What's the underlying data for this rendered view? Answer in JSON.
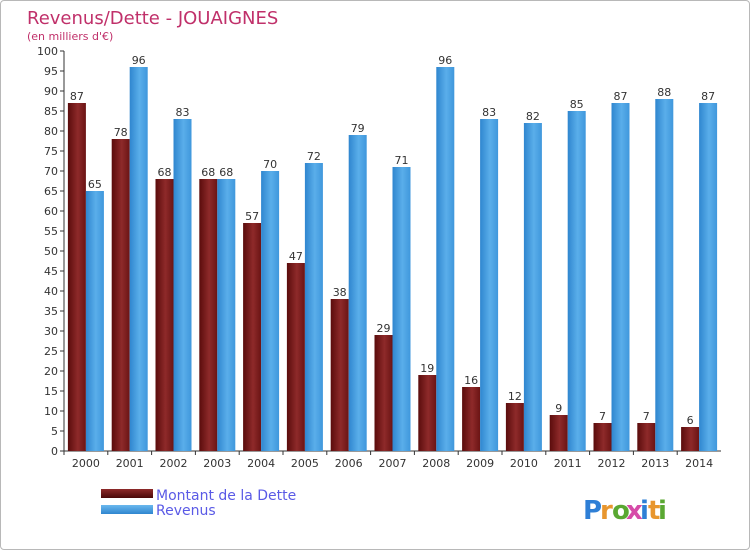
{
  "chart_data": {
    "type": "bar",
    "title": "Revenus/Dette - JOUAIGNES",
    "subtitle": "(en milliers d'€)",
    "categories": [
      "2000",
      "2001",
      "2002",
      "2003",
      "2004",
      "2005",
      "2006",
      "2007",
      "2008",
      "2009",
      "2010",
      "2011",
      "2012",
      "2013",
      "2014"
    ],
    "series": [
      {
        "name": "Montant de la Dette",
        "color": "#7a1a1a",
        "values": [
          87,
          78,
          68,
          68,
          57,
          47,
          38,
          29,
          19,
          16,
          12,
          9,
          7,
          7,
          6
        ]
      },
      {
        "name": "Revenus",
        "color": "#4ea6e6",
        "values": [
          65,
          96,
          83,
          68,
          70,
          72,
          79,
          71,
          96,
          83,
          82,
          85,
          87,
          88,
          87
        ]
      }
    ],
    "ylim": [
      0,
      100
    ],
    "yticks": [
      0,
      5,
      10,
      15,
      20,
      25,
      30,
      35,
      40,
      45,
      50,
      55,
      60,
      65,
      70,
      75,
      80,
      85,
      90,
      95,
      100
    ],
    "grid": false,
    "legend_position": "bottom-left"
  },
  "brand": {
    "letters": [
      "P",
      "r",
      "o",
      "x",
      "i",
      "t",
      "i"
    ],
    "colors": [
      "#2e7fd6",
      "#e8962e",
      "#5aa832",
      "#d64aa8",
      "#2e7fd6",
      "#e8962e",
      "#5aa832"
    ]
  },
  "colors": {
    "title": "#c0306a",
    "legend_text": "#5a5ae6",
    "axis": "#333333"
  }
}
